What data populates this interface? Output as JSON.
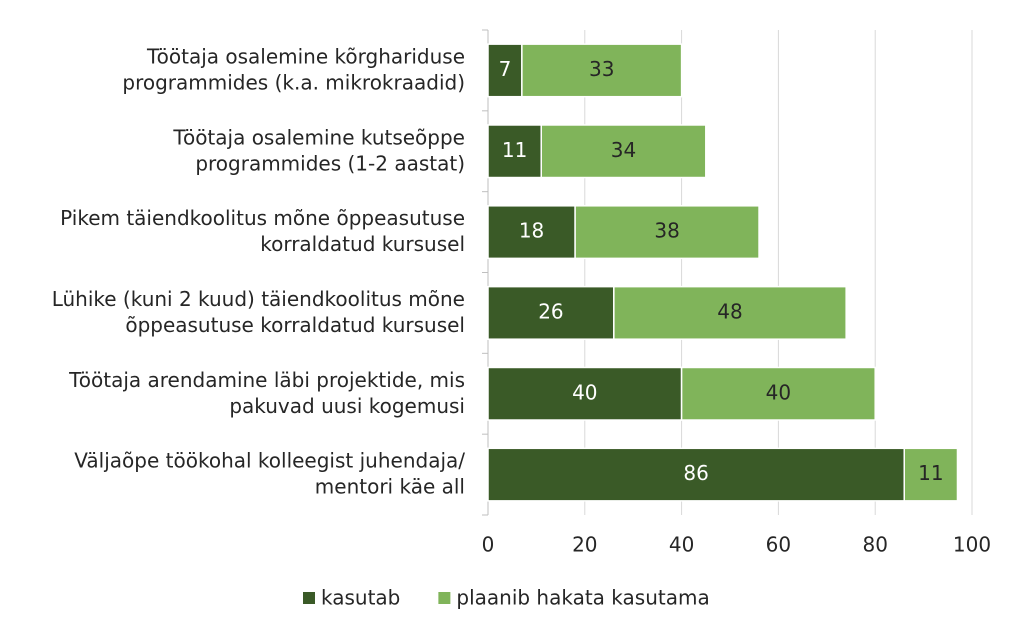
{
  "chart_data": {
    "type": "stacked-bar-horizontal",
    "categories": [
      "Töötaja osalemine  kõrghariduse\nprogrammides (k.a. mikrokraadid)",
      "Töötaja osalemine  kutseõppe\nprogrammides (1-2 aastat)",
      "Pikem  täiendkoolitus mõne õppeasutuse\nkorraldatud kursusel",
      "Lühike (kuni 2 kuud) täiendkoolitus mõne\nõppeasutuse korraldatud kursusel",
      "Töötaja arendamine läbi  projektide, mis\npakuvad uusi kogemusi",
      "Väljaõpe töökohal kolleegist juhendaja/\nmentori käe all"
    ],
    "series": [
      {
        "name": "kasutab",
        "color": "#3a5a27",
        "values": [
          7,
          11,
          18,
          26,
          40,
          86
        ]
      },
      {
        "name": "plaanib hakata kasutama",
        "color": "#80b45a",
        "values": [
          33,
          34,
          38,
          48,
          40,
          11
        ]
      }
    ],
    "xlim": [
      0,
      100
    ],
    "xticks": [
      0,
      20,
      40,
      60,
      80,
      100
    ],
    "grid": true,
    "legend": "bottom"
  }
}
